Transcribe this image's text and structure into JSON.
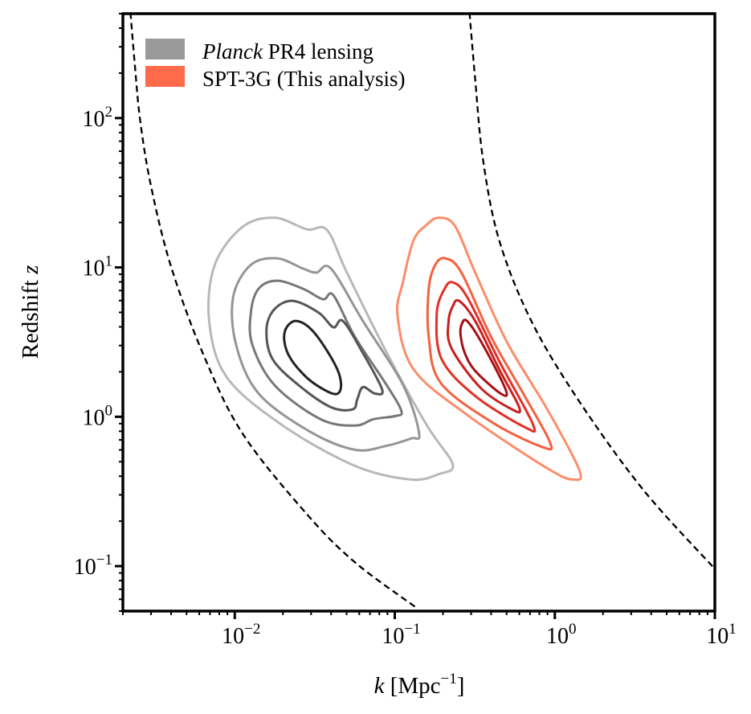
{
  "chart_data": {
    "type": "contour",
    "title": "",
    "xlabel": "k [Mpc⁻¹]",
    "xlabel_parts": {
      "var": "k",
      "rest": " [Mpc",
      "sup": "−1",
      "close": "]"
    },
    "ylabel": "Redshift z",
    "ylabel_parts": {
      "text": "Redshift ",
      "var": "z"
    },
    "xscale": "log",
    "yscale": "log",
    "xlim": [
      0.002,
      10
    ],
    "ylim": [
      0.05,
      500
    ],
    "grid": false,
    "x_ticks": [
      {
        "value": 0.01,
        "base": "10",
        "exp": "−2"
      },
      {
        "value": 0.1,
        "base": "10",
        "exp": "−1"
      },
      {
        "value": 1,
        "base": "10",
        "exp": "0"
      },
      {
        "value": 10,
        "base": "10",
        "exp": "1"
      }
    ],
    "y_ticks": [
      {
        "value": 0.1,
        "base": "10",
        "exp": "−1"
      },
      {
        "value": 1,
        "base": "10",
        "exp": "0"
      },
      {
        "value": 10,
        "base": "10",
        "exp": "1"
      },
      {
        "value": 100,
        "base": "10",
        "exp": "2"
      }
    ],
    "legend": {
      "placement": "top-left",
      "entries": [
        {
          "label_italic": "Planck",
          "label": " PR4 lensing",
          "color": "#999999"
        },
        {
          "label_italic": "",
          "label": "SPT-3G (This analysis)",
          "color": "#fe6a4a"
        }
      ]
    },
    "series": [
      {
        "group": "planck",
        "colors": [
          "#b8b8b8",
          "#959595",
          "#777777",
          "#555555",
          "#222222"
        ],
        "contours": [
          [
            [
              0.0112,
              18.7
            ],
            [
              0.0178,
              21.5
            ],
            [
              0.0282,
              18.0
            ],
            [
              0.0377,
              17.8
            ],
            [
              0.0502,
              9.23
            ],
            [
              0.0893,
              2.67
            ],
            [
              0.159,
              0.873
            ],
            [
              0.23,
              0.481
            ],
            [
              0.189,
              0.414
            ],
            [
              0.126,
              0.38
            ],
            [
              0.0564,
              0.469
            ],
            [
              0.02,
              0.873
            ],
            [
              0.00891,
              1.84
            ],
            [
              0.00692,
              4.38
            ],
            [
              0.0075,
              10.4
            ]
          ],
          [
            [
              0.0126,
              10.4
            ],
            [
              0.0184,
              11.5
            ],
            [
              0.0267,
              9.82
            ],
            [
              0.0324,
              9.23
            ],
            [
              0.0399,
              9.82
            ],
            [
              0.0632,
              4.38
            ],
            [
              0.113,
              1.62
            ],
            [
              0.142,
              0.77
            ],
            [
              0.126,
              0.715
            ],
            [
              0.0893,
              0.64
            ],
            [
              0.0564,
              0.601
            ],
            [
              0.0292,
              0.8
            ],
            [
              0.0141,
              1.43
            ],
            [
              0.0102,
              3.02
            ],
            [
              0.00977,
              6.35
            ]
          ],
          [
            [
              0.0141,
              7.2
            ],
            [
              0.0184,
              8.15
            ],
            [
              0.0267,
              7.2
            ],
            [
              0.0356,
              6.12
            ],
            [
              0.0413,
              6.52
            ],
            [
              0.0564,
              3.42
            ],
            [
              0.0893,
              1.62
            ],
            [
              0.11,
              1.09
            ],
            [
              0.1,
              1.01
            ],
            [
              0.0734,
              0.963
            ],
            [
              0.0564,
              0.873
            ],
            [
              0.0344,
              0.963
            ],
            [
              0.0178,
              1.62
            ],
            [
              0.0129,
              3.02
            ],
            [
              0.0126,
              4.96
            ]
          ],
          [
            [
              0.0178,
              5.28
            ],
            [
              0.0232,
              5.97
            ],
            [
              0.0336,
              4.96
            ],
            [
              0.0413,
              3.97
            ],
            [
              0.0474,
              4.38
            ],
            [
              0.0632,
              2.67
            ],
            [
              0.0834,
              1.52
            ],
            [
              0.0752,
              1.43
            ],
            [
              0.0632,
              1.58
            ],
            [
              0.0583,
              1.31
            ],
            [
              0.0545,
              1.12
            ],
            [
              0.0399,
              1.16
            ],
            [
              0.0252,
              1.62
            ],
            [
              0.0172,
              2.44
            ],
            [
              0.0158,
              3.87
            ]
          ],
          [
            [
              0.0211,
              3.97
            ],
            [
              0.0243,
              4.38
            ],
            [
              0.0299,
              3.87
            ],
            [
              0.0377,
              2.77
            ],
            [
              0.0448,
              1.95
            ],
            [
              0.0458,
              1.52
            ],
            [
              0.0408,
              1.43
            ],
            [
              0.0292,
              1.77
            ],
            [
              0.0224,
              2.44
            ],
            [
              0.0204,
              3.21
            ]
          ]
        ]
      },
      {
        "group": "spt3g",
        "colors": [
          "#fc8d6b",
          "#f4613f",
          "#e32f27",
          "#c8201e",
          "#a50f15"
        ],
        "contours": [
          [
            [
              0.159,
              19.4
            ],
            [
              0.189,
              21.5
            ],
            [
              0.238,
              18.9
            ],
            [
              0.318,
              9.23
            ],
            [
              0.505,
              3.13
            ],
            [
              0.898,
              1.12
            ],
            [
              1.42,
              0.441
            ],
            [
              1.31,
              0.38
            ],
            [
              0.898,
              0.452
            ],
            [
              0.283,
              1.03
            ],
            [
              0.131,
              2.08
            ],
            [
              0.104,
              4.78
            ],
            [
              0.113,
              8.15
            ],
            [
              0.131,
              15.2
            ]
          ],
          [
            [
              0.179,
              10.4
            ],
            [
              0.207,
              11.5
            ],
            [
              0.261,
              9.23
            ],
            [
              0.4,
              3.42
            ],
            [
              0.635,
              1.43
            ],
            [
              0.929,
              0.681
            ],
            [
              0.848,
              0.624
            ],
            [
              0.414,
              0.906
            ],
            [
              0.194,
              1.68
            ],
            [
              0.163,
              3.42
            ],
            [
              0.163,
              7.2
            ]
          ],
          [
            [
              0.205,
              7.2
            ],
            [
              0.23,
              7.94
            ],
            [
              0.283,
              6.35
            ],
            [
              0.449,
              2.36
            ],
            [
              0.729,
              0.894
            ],
            [
              0.65,
              0.851
            ],
            [
              0.318,
              1.38
            ],
            [
              0.196,
              2.44
            ],
            [
              0.183,
              4.96
            ]
          ],
          [
            [
              0.23,
              5.48
            ],
            [
              0.252,
              5.97
            ],
            [
              0.318,
              4.38
            ],
            [
              0.449,
              2.08
            ],
            [
              0.6,
              1.15
            ],
            [
              0.541,
              1.12
            ],
            [
              0.344,
              1.56
            ],
            [
              0.225,
              2.91
            ],
            [
              0.217,
              4.38
            ]
          ],
          [
            [
              0.261,
              4.12
            ],
            [
              0.283,
              4.38
            ],
            [
              0.356,
              3.02
            ],
            [
              0.493,
              1.52
            ],
            [
              0.459,
              1.43
            ],
            [
              0.318,
              2.03
            ],
            [
              0.274,
              2.67
            ],
            [
              0.258,
              3.5
            ]
          ]
        ]
      }
    ],
    "dashed_lines": [
      {
        "color": "#000000",
        "points": [
          [
            0.00223,
            508
          ],
          [
            0.00237,
            233
          ],
          [
            0.00256,
            97.5
          ],
          [
            0.00298,
            36.1
          ],
          [
            0.00397,
            10.4
          ],
          [
            0.00631,
            2.67
          ],
          [
            0.0112,
            0.77
          ],
          [
            0.0282,
            0.223
          ],
          [
            0.0564,
            0.106
          ],
          [
            0.134,
            0.0534
          ]
        ]
      },
      {
        "color": "#000000",
        "points": [
          [
            0.293,
            508
          ],
          [
            0.318,
            182
          ],
          [
            0.356,
            52.5
          ],
          [
            0.449,
            15.2
          ],
          [
            0.713,
            4.38
          ],
          [
            1.42,
            1.27
          ],
          [
            3.58,
            0.323
          ],
          [
            10,
            0.0958
          ]
        ]
      }
    ]
  }
}
